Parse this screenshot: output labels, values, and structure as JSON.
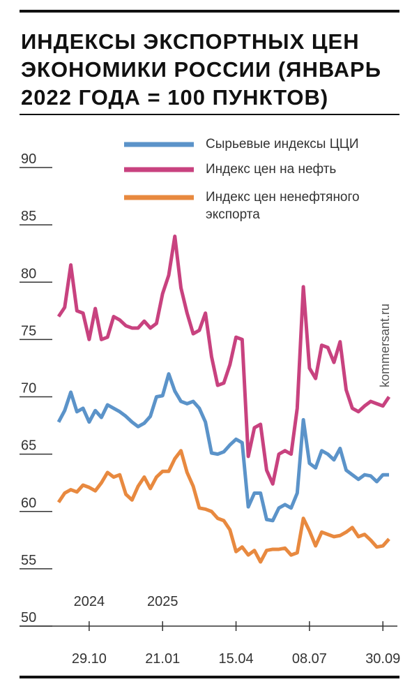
{
  "chart_data": {
    "type": "line",
    "title": "ИНДЕКСЫ ЭКСПОРТНЫХ ЦЕН ЭКОНОМИКИ РОССИИ (ЯНВАРЬ 2022 ГОДА = 100 ПУНКТОВ)",
    "source": "kommersant.ru",
    "year_labels": [
      "2024",
      "2025"
    ],
    "categories": [
      null,
      null,
      null,
      null,
      null,
      "29.10",
      null,
      null,
      null,
      null,
      null,
      null,
      null,
      null,
      null,
      null,
      null,
      "21.01",
      null,
      null,
      null,
      null,
      null,
      null,
      null,
      null,
      null,
      null,
      null,
      "15.04",
      null,
      null,
      null,
      null,
      null,
      null,
      null,
      null,
      null,
      null,
      null,
      "08.07",
      null,
      null,
      null,
      null,
      null,
      null,
      null,
      null,
      null,
      null,
      null,
      "30.09",
      null
    ],
    "ylim": [
      50,
      90
    ],
    "yticks": [
      50,
      55,
      60,
      65,
      70,
      75,
      80,
      85,
      90
    ],
    "series": [
      {
        "name": "Сырьевые индексы ЦЦИ",
        "color": "#5b93c9",
        "values": [
          67.8,
          68.8,
          70.4,
          68.7,
          69,
          67.8,
          68.8,
          68.2,
          69.3,
          69,
          68.7,
          68.3,
          67.8,
          67.4,
          67.7,
          68.3,
          70,
          70.1,
          72,
          70.5,
          69.6,
          69.4,
          69.6,
          69,
          67.8,
          65.1,
          65,
          65.2,
          65.8,
          66.3,
          66,
          60.4,
          61.6,
          61.6,
          59.3,
          59.2,
          60.3,
          60.6,
          60.3,
          61.6,
          68,
          64.2,
          63.8,
          65.3,
          65,
          64.5,
          65.5,
          63.6,
          63.2,
          62.8,
          63.2,
          63.1,
          62.6,
          63.2,
          63.2
        ]
      },
      {
        "name": "Индекс цен на нефть",
        "color": "#c8427f",
        "values": [
          77,
          77.8,
          81.5,
          77.5,
          77.3,
          75,
          77.7,
          75,
          75.2,
          77,
          76.7,
          76.2,
          76,
          76,
          76.6,
          76,
          76.4,
          79,
          80.6,
          84,
          79.5,
          77.3,
          75.5,
          75.8,
          77.3,
          73.5,
          71,
          71.2,
          72.8,
          75.2,
          75,
          64.8,
          67.3,
          67.6,
          63.6,
          62.4,
          65,
          65.3,
          65,
          69,
          79.6,
          72.5,
          71.6,
          74.5,
          74.3,
          73,
          74.8,
          70.6,
          69,
          68.7,
          69.2,
          69.6,
          69.4,
          69.2,
          70
        ]
      },
      {
        "name": "Индекс цен ненефтяного экспорта",
        "color": "#e8893f",
        "values": [
          60.8,
          61.6,
          61.9,
          61.7,
          62.3,
          62.1,
          61.8,
          62.5,
          63.4,
          63,
          63.2,
          61.5,
          61,
          62.2,
          63,
          62,
          63,
          63.5,
          63.5,
          64.6,
          65.3,
          63.4,
          62.2,
          60.3,
          60.2,
          60,
          59.4,
          59.2,
          58.4,
          56.5,
          56.9,
          56.2,
          56.6,
          55.6,
          56.6,
          56.7,
          56.7,
          56.8,
          56.2,
          56.4,
          59.4,
          58.3,
          57,
          58.2,
          58,
          57.8,
          57.9,
          58.2,
          58.6,
          57.8,
          58,
          57.5,
          56.9,
          57,
          57.6
        ]
      }
    ]
  }
}
